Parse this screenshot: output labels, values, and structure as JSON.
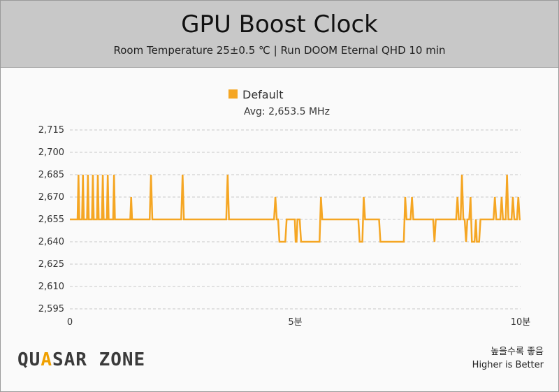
{
  "header": {
    "title": "GPU Boost Clock",
    "subtitle": "Room Temperature 25±0.5 ℃  |  Run DOOM Eternal QHD 10 min"
  },
  "footer": {
    "note_ko": "높을수록 좋음",
    "note_en": "Higher is Better",
    "logo_part1": "QU",
    "logo_accent": "A",
    "logo_part2": "SAR ZONE"
  },
  "colors": {
    "series": "#f5a623",
    "grid": "#c8c8c8",
    "axis_text": "#333333"
  },
  "chart_data": {
    "type": "line",
    "title": "GPU Boost Clock",
    "subtitle": "Room Temperature 25±0.5 ℃  |  Run DOOM Eternal QHD 10 min",
    "xlabel": "",
    "ylabel": "",
    "xlim": [
      0,
      10
    ],
    "ylim": [
      2595,
      2715
    ],
    "yticks": [
      2715,
      2700,
      2685,
      2670,
      2655,
      2640,
      2625,
      2610,
      2595
    ],
    "ytick_labels": [
      "2,715",
      "2,700",
      "2,685",
      "2,670",
      "2,655",
      "2,640",
      "2,625",
      "2,610",
      "2,595"
    ],
    "xticks": [
      0,
      5,
      10
    ],
    "xtick_labels": [
      "0",
      "5분",
      "10분"
    ],
    "grid": true,
    "legend": "top-center",
    "annotation": "Avg: 2,653.5 MHz",
    "series": [
      {
        "name": "Default",
        "color": "#f5a623",
        "points": [
          [
            0.0,
            2655
          ],
          [
            0.17,
            2655
          ],
          [
            0.19,
            2685
          ],
          [
            0.21,
            2655
          ],
          [
            0.27,
            2655
          ],
          [
            0.29,
            2685
          ],
          [
            0.31,
            2655
          ],
          [
            0.38,
            2655
          ],
          [
            0.4,
            2685
          ],
          [
            0.42,
            2655
          ],
          [
            0.49,
            2655
          ],
          [
            0.51,
            2685
          ],
          [
            0.53,
            2655
          ],
          [
            0.6,
            2655
          ],
          [
            0.62,
            2685
          ],
          [
            0.64,
            2655
          ],
          [
            0.71,
            2655
          ],
          [
            0.73,
            2685
          ],
          [
            0.75,
            2655
          ],
          [
            0.82,
            2655
          ],
          [
            0.84,
            2685
          ],
          [
            0.86,
            2655
          ],
          [
            0.96,
            2655
          ],
          [
            0.98,
            2685
          ],
          [
            1.0,
            2655
          ],
          [
            1.34,
            2655
          ],
          [
            1.36,
            2670
          ],
          [
            1.38,
            2655
          ],
          [
            1.77,
            2655
          ],
          [
            1.8,
            2685
          ],
          [
            1.83,
            2655
          ],
          [
            2.47,
            2655
          ],
          [
            2.5,
            2685
          ],
          [
            2.53,
            2655
          ],
          [
            3.47,
            2655
          ],
          [
            3.5,
            2685
          ],
          [
            3.53,
            2655
          ],
          [
            4.53,
            2655
          ],
          [
            4.56,
            2670
          ],
          [
            4.59,
            2655
          ],
          [
            4.62,
            2655
          ],
          [
            4.65,
            2640
          ],
          [
            4.78,
            2640
          ],
          [
            4.81,
            2655
          ],
          [
            4.99,
            2655
          ],
          [
            5.01,
            2640
          ],
          [
            5.03,
            2640
          ],
          [
            5.05,
            2655
          ],
          [
            5.1,
            2655
          ],
          [
            5.13,
            2640
          ],
          [
            5.54,
            2640
          ],
          [
            5.57,
            2670
          ],
          [
            5.6,
            2655
          ],
          [
            6.4,
            2655
          ],
          [
            6.43,
            2640
          ],
          [
            6.49,
            2640
          ],
          [
            6.52,
            2670
          ],
          [
            6.55,
            2655
          ],
          [
            6.86,
            2655
          ],
          [
            6.89,
            2640
          ],
          [
            7.41,
            2640
          ],
          [
            7.44,
            2670
          ],
          [
            7.47,
            2655
          ],
          [
            7.56,
            2655
          ],
          [
            7.59,
            2670
          ],
          [
            7.62,
            2655
          ],
          [
            8.06,
            2655
          ],
          [
            8.09,
            2640
          ],
          [
            8.12,
            2655
          ],
          [
            8.57,
            2655
          ],
          [
            8.6,
            2670
          ],
          [
            8.63,
            2655
          ],
          [
            8.67,
            2655
          ],
          [
            8.7,
            2685
          ],
          [
            8.73,
            2655
          ],
          [
            8.76,
            2655
          ],
          [
            8.79,
            2640
          ],
          [
            8.82,
            2655
          ],
          [
            8.86,
            2655
          ],
          [
            8.89,
            2670
          ],
          [
            8.92,
            2640
          ],
          [
            8.98,
            2640
          ],
          [
            9.01,
            2655
          ],
          [
            9.03,
            2640
          ],
          [
            9.08,
            2640
          ],
          [
            9.11,
            2655
          ],
          [
            9.4,
            2655
          ],
          [
            9.43,
            2670
          ],
          [
            9.46,
            2655
          ],
          [
            9.55,
            2655
          ],
          [
            9.58,
            2670
          ],
          [
            9.61,
            2655
          ],
          [
            9.67,
            2655
          ],
          [
            9.7,
            2685
          ],
          [
            9.73,
            2655
          ],
          [
            9.8,
            2655
          ],
          [
            9.83,
            2670
          ],
          [
            9.86,
            2655
          ],
          [
            9.92,
            2655
          ],
          [
            9.95,
            2670
          ],
          [
            9.98,
            2655
          ],
          [
            10.0,
            2655
          ]
        ]
      }
    ]
  }
}
